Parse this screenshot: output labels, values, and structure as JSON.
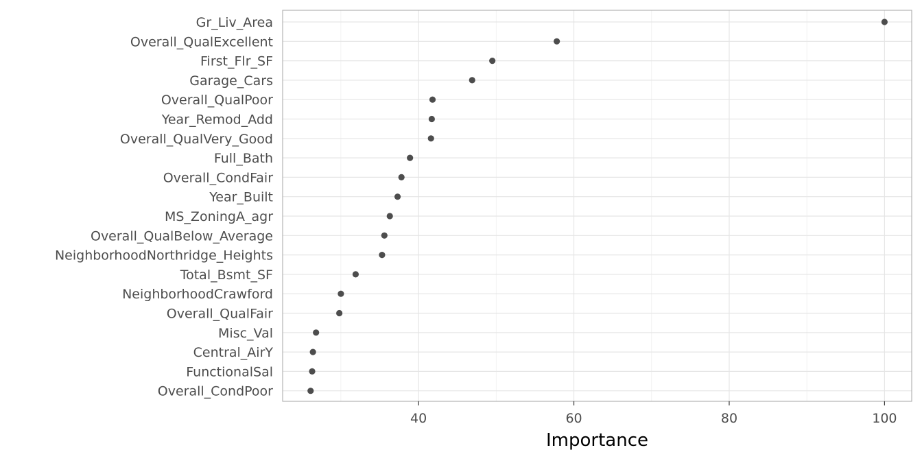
{
  "chart_data": {
    "type": "scatter",
    "orientation": "horizontal",
    "xlabel": "Importance",
    "ylabel": "",
    "xlim": [
      22.5,
      103.5
    ],
    "x_ticks": [
      40,
      60,
      80,
      100
    ],
    "x_tick_labels": [
      "40",
      "60",
      "80",
      "100"
    ],
    "grid": true,
    "point_color": "#4d4d4d",
    "grid_color": "#e5e5e5",
    "panel_border_color": "#b3b3b3",
    "categories": [
      "Gr_Liv_Area",
      "Overall_QualExcellent",
      "First_Flr_SF",
      "Garage_Cars",
      "Overall_QualPoor",
      "Year_Remod_Add",
      "Overall_QualVery_Good",
      "Full_Bath",
      "Overall_CondFair",
      "Year_Built",
      "MS_ZoningA_agr",
      "Overall_QualBelow_Average",
      "NeighborhoodNorthridge_Heights",
      "Total_Bsmt_SF",
      "NeighborhoodCrawford",
      "Overall_QualFair",
      "Misc_Val",
      "Central_AirY",
      "FunctionalSal",
      "Overall_CondPoor"
    ],
    "values": [
      100,
      57.8,
      49.5,
      46.9,
      41.8,
      41.7,
      41.6,
      38.9,
      37.8,
      37.3,
      36.3,
      35.6,
      35.3,
      31.9,
      30.0,
      29.8,
      26.8,
      26.4,
      26.3,
      26.1
    ]
  }
}
